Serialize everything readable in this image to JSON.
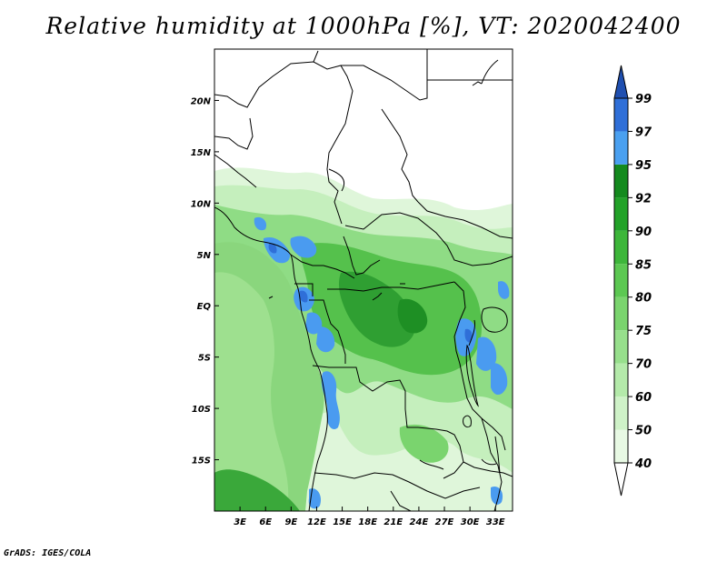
{
  "title": "Relative humidity at 1000hPa [%], VT: 2020042400",
  "credit": "GrADS: IGES/COLA",
  "map": {
    "lon_range": [
      0,
      35
    ],
    "lat_range": [
      -20,
      25
    ],
    "x_ticks": [
      "3E",
      "6E",
      "9E",
      "12E",
      "15E",
      "18E",
      "21E",
      "24E",
      "27E",
      "30E",
      "33E"
    ],
    "y_ticks": [
      "20N",
      "15N",
      "10N",
      "5N",
      "EQ",
      "5S",
      "10S",
      "15S"
    ]
  },
  "colorbar": {
    "levels": [
      "40",
      "50",
      "60",
      "70",
      "75",
      "80",
      "85",
      "90",
      "92",
      "95",
      "97",
      "99"
    ],
    "colors": [
      "#ffffff",
      "#e8f9e4",
      "#cff2c8",
      "#b4eaaa",
      "#97df8c",
      "#7ad46e",
      "#5cc852",
      "#3db63a",
      "#22a228",
      "#148a1e",
      "#4aa0f0",
      "#2f6fd8",
      "#1f4fb0"
    ]
  },
  "field": {
    "variable": "Relative humidity",
    "level": "1000hPa",
    "units": "%",
    "valid_time": "2020042400"
  }
}
